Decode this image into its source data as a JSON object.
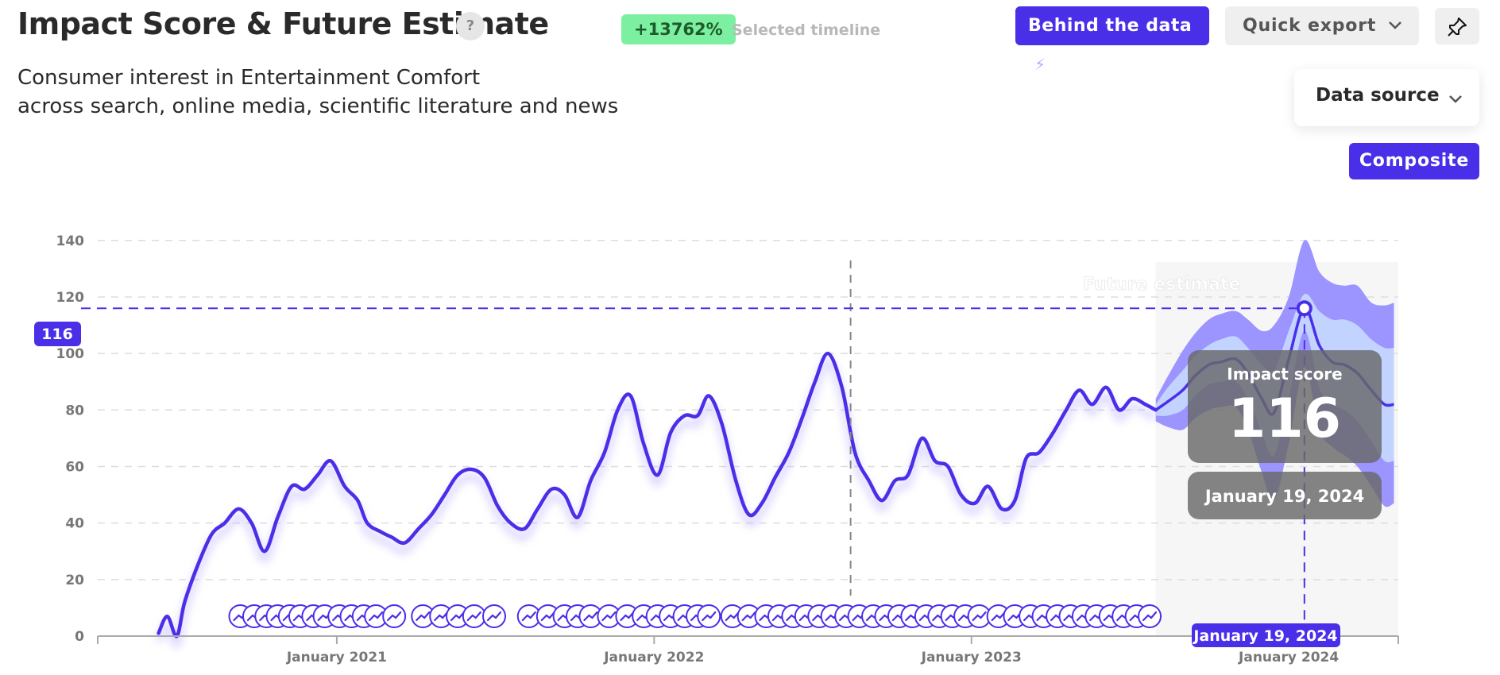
{
  "header": {
    "title": "Impact Score & Future Estimate",
    "help_label": "?",
    "change_badge": "+13762%",
    "change_caption": "Selected timeline",
    "subtitle_line1": "Consumer interest in Entertainment Comfort",
    "subtitle_line2": "across search, online media, scientific literature and news"
  },
  "toolbar": {
    "behind_label": "Behind the data",
    "export_label": "Quick export",
    "data_source_label": "Data source",
    "composite_label": "Composite"
  },
  "colors": {
    "accent": "#4a2fe8",
    "line": "#4a2fe8",
    "band_outer": "#9c94ff",
    "band_inner": "#c2d3ff",
    "forecast_bg": "#f6f6f6",
    "badge_green": "#7cf0a0"
  },
  "icons": {
    "help": "question-mark-icon",
    "behind": "lightning-bolt-icon",
    "export": "chevron-down-icon",
    "pin": "pin-icon",
    "data_source": "chevron-down-icon",
    "event": "trend-arrow-icon"
  },
  "chart_data": {
    "type": "line",
    "x_axis": "date",
    "ylim": [
      0,
      145
    ],
    "y_ticks": [
      0,
      20,
      40,
      60,
      80,
      100,
      120,
      140
    ],
    "x_ticks": [
      "January 2021",
      "January 2022",
      "January 2023",
      "January 2024"
    ],
    "grid": true,
    "future_label": "Future estimate",
    "crosshair_value_label": "116",
    "tooltip": {
      "title": "Impact score",
      "value": "116",
      "date": "January 19, 2024",
      "x_date_label": "January 19, 2024"
    },
    "series": [
      {
        "kind": "history",
        "dates": [
          "2020-06-10",
          "2020-06-20",
          "2020-07-01",
          "2020-07-10",
          "2020-07-25",
          "2020-08-10",
          "2020-08-25",
          "2020-09-10",
          "2020-09-25",
          "2020-10-10",
          "2020-10-25",
          "2020-11-10",
          "2020-11-25",
          "2020-12-10",
          "2020-12-25",
          "2021-01-10",
          "2021-01-25",
          "2021-02-05",
          "2021-02-20",
          "2021-03-05",
          "2021-03-20",
          "2021-04-05",
          "2021-04-20",
          "2021-05-05",
          "2021-05-20",
          "2021-06-05",
          "2021-06-20",
          "2021-07-05",
          "2021-07-20",
          "2021-08-05",
          "2021-08-20",
          "2021-09-05",
          "2021-09-20",
          "2021-10-05",
          "2021-10-20",
          "2021-11-05",
          "2021-11-20",
          "2021-12-05",
          "2021-12-20",
          "2022-01-05",
          "2022-01-20",
          "2022-02-05",
          "2022-02-20",
          "2022-03-05",
          "2022-03-20",
          "2022-04-05",
          "2022-04-20",
          "2022-05-05",
          "2022-05-20",
          "2022-06-05",
          "2022-06-20",
          "2022-07-05",
          "2022-07-20",
          "2022-08-05",
          "2022-08-20",
          "2022-09-05",
          "2022-09-20",
          "2022-10-05",
          "2022-10-20",
          "2022-11-05",
          "2022-11-20",
          "2022-12-05",
          "2022-12-20",
          "2023-01-05",
          "2023-01-20",
          "2023-02-05",
          "2023-02-20",
          "2023-03-05",
          "2023-03-20",
          "2023-04-05",
          "2023-04-20",
          "2023-05-05",
          "2023-05-20",
          "2023-06-05",
          "2023-06-20",
          "2023-07-05",
          "2023-07-20",
          "2023-08-01"
        ],
        "values": [
          1,
          7,
          0,
          12,
          25,
          36,
          40,
          45,
          40,
          30,
          42,
          53,
          52,
          57,
          62,
          53,
          48,
          40,
          37,
          35,
          33,
          38,
          43,
          50,
          57,
          59,
          56,
          46,
          40,
          38,
          45,
          52,
          50,
          42,
          55,
          65,
          80,
          85,
          68,
          57,
          72,
          78,
          78,
          85,
          75,
          55,
          43,
          47,
          56,
          65,
          77,
          90,
          100,
          88,
          65,
          55,
          48,
          55,
          57,
          70,
          62,
          60,
          50,
          47,
          53,
          45,
          48,
          63,
          65,
          72,
          80,
          87,
          82,
          88,
          80,
          84,
          82,
          80
        ]
      },
      {
        "kind": "forecast",
        "dates": [
          "2023-08-01",
          "2023-08-15",
          "2023-09-01",
          "2023-09-15",
          "2023-10-01",
          "2023-10-15",
          "2023-11-01",
          "2023-11-15",
          "2023-12-01",
          "2023-12-15",
          "2024-01-01",
          "2024-01-19",
          "2024-02-05",
          "2024-02-20",
          "2024-03-05",
          "2024-03-20",
          "2024-04-05",
          "2024-04-20",
          "2024-05-01"
        ],
        "values": [
          80,
          83,
          87,
          92,
          96,
          97,
          98,
          93,
          84,
          79,
          98,
          116,
          103,
          97,
          96,
          93,
          87,
          82,
          82
        ],
        "inner_upper": [
          82,
          88,
          94,
          99,
          103,
          105,
          106,
          102,
          96,
          94,
          108,
          121,
          115,
          112,
          112,
          110,
          105,
          102,
          102
        ],
        "inner_lower": [
          78,
          78,
          80,
          85,
          89,
          90,
          90,
          84,
          72,
          64,
          84,
          108,
          88,
          82,
          80,
          76,
          69,
          62,
          62
        ],
        "outer_upper": [
          84,
          92,
          101,
          107,
          112,
          114,
          115,
          112,
          108,
          110,
          120,
          140,
          129,
          125,
          124,
          124,
          118,
          117,
          118
        ],
        "outer_lower": [
          76,
          74,
          73,
          77,
          80,
          81,
          81,
          73,
          58,
          48,
          68,
          95,
          73,
          67,
          64,
          60,
          53,
          46,
          47
        ]
      }
    ],
    "event_dates": [
      "2020-09-12",
      "2020-09-28",
      "2020-10-12",
      "2020-10-25",
      "2020-11-08",
      "2020-11-20",
      "2020-12-05",
      "2020-12-18",
      "2021-01-04",
      "2021-01-18",
      "2021-02-01",
      "2021-02-15",
      "2021-03-08",
      "2021-04-10",
      "2021-05-01",
      "2021-05-20",
      "2021-06-08",
      "2021-07-01",
      "2021-08-10",
      "2021-09-01",
      "2021-09-20",
      "2021-10-05",
      "2021-10-20",
      "2021-11-10",
      "2021-12-01",
      "2021-12-20",
      "2022-01-05",
      "2022-01-20",
      "2022-02-05",
      "2022-02-20",
      "2022-03-05",
      "2022-04-01",
      "2022-04-20",
      "2022-05-10",
      "2022-05-25",
      "2022-06-10",
      "2022-06-25",
      "2022-07-10",
      "2022-07-25",
      "2022-08-10",
      "2022-08-25",
      "2022-09-10",
      "2022-09-25",
      "2022-10-10",
      "2022-10-25",
      "2022-11-10",
      "2022-11-25",
      "2022-12-10",
      "2022-12-25",
      "2023-01-10",
      "2023-02-01",
      "2023-02-20",
      "2023-03-10",
      "2023-03-25",
      "2023-04-10",
      "2023-04-25",
      "2023-05-10",
      "2023-05-25",
      "2023-06-10",
      "2023-06-25",
      "2023-07-10",
      "2023-07-25"
    ]
  }
}
